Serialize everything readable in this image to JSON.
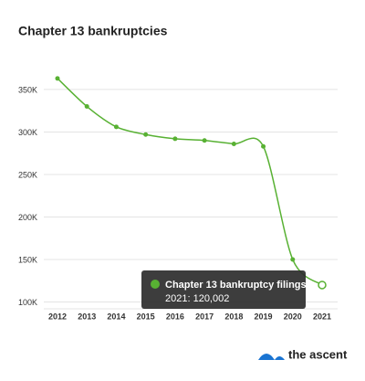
{
  "chart_data": {
    "type": "line",
    "title": "Chapter 13 bankruptcies",
    "categories": [
      "2012",
      "2013",
      "2014",
      "2015",
      "2016",
      "2017",
      "2018",
      "2019",
      "2020",
      "2021"
    ],
    "series": [
      {
        "name": "Chapter 13 bankruptcy filings",
        "color": "#58b133",
        "values": [
          363000,
          330000,
          306000,
          297000,
          292000,
          290000,
          286000,
          283000,
          150000,
          120002
        ]
      }
    ],
    "ylim": [
      92000,
      380000
    ],
    "yticks": [
      {
        "value": 100000,
        "label": "100K"
      },
      {
        "value": 150000,
        "label": "150K"
      },
      {
        "value": 200000,
        "label": "200K"
      },
      {
        "value": 250000,
        "label": "250K"
      },
      {
        "value": 300000,
        "label": "300K"
      },
      {
        "value": 350000,
        "label": "350K"
      }
    ],
    "grid": true,
    "tooltip": "2021: 120,002",
    "brand": "the ascent"
  }
}
